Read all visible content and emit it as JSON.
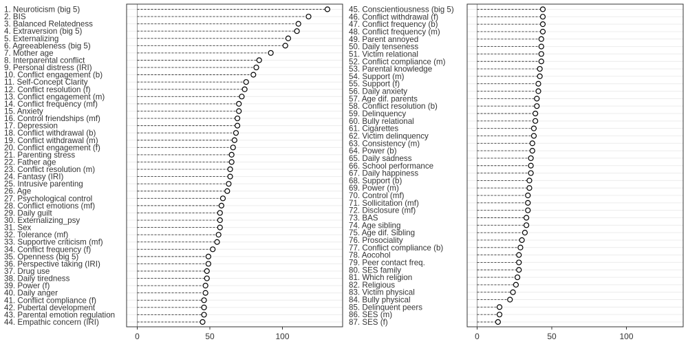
{
  "chart_data": [
    {
      "type": "dotplot",
      "xlim": [
        0,
        140
      ],
      "xticks": [
        "0",
        "50",
        "100"
      ],
      "xtick_values": [
        0,
        50,
        100
      ],
      "categories": [
        "1. Neuroticism (big 5)",
        "2. BIS",
        "3. Balanced Relatedness",
        "4. Extraversion (big 5)",
        "5. Externalizing",
        "6. Agreeableness (big 5)",
        "7. Mother age",
        "8. Interparental conflict",
        "9. Personal distress (IRI)",
        "10. Conflict engagement (b)",
        "11. Self-Concept Clarity",
        "12. Conflict resolution (f)",
        "13. Conflict engagement (m)",
        "14. Conflict frequency (mf)",
        "15. Anxiety",
        "16. Control friendships (mf)",
        "17. Depression",
        "18. Conflict withdrawal (b)",
        "19. Conflict withdrawal (m)",
        "20. Conflict engagement (f)",
        "21. Parenting stress",
        "22. Father age",
        "23. Conflict resolution (m)",
        "24. Fantasy (IRI)",
        "25. Intrusive parenting",
        "26. Age",
        "27. Psychological control",
        "28. Conflict emotions (mf)",
        "29. Daily guilt",
        "30. Externalizing_psy",
        "31. Sex",
        "32. Tolerance (mf)",
        "33. Supportive criticism (mf)",
        "34. Conflict frequency (f)",
        "35. Openness (big 5)",
        "36. Perspective taking (IRI)",
        "37. Drug use",
        "38. Daily tiredness",
        "39. Power (f)",
        "40. Daily anger",
        "41. Conflict compliance (f)",
        "42. Pubertal development",
        "43. Parental emotion regulation",
        "44. Empathic concern (IRI)"
      ],
      "values": [
        131,
        118,
        111,
        110,
        104,
        102,
        92,
        84,
        82,
        80,
        75,
        74,
        72,
        70,
        70,
        69,
        69,
        68,
        67,
        66,
        65,
        65,
        64,
        64,
        63,
        62,
        59,
        58,
        57,
        57,
        57,
        56,
        55,
        52,
        49,
        49,
        48,
        48,
        47,
        47,
        46,
        46,
        46,
        45
      ]
    },
    {
      "type": "dotplot",
      "xlim": [
        0,
        140
      ],
      "xticks": [
        "0",
        "50",
        "100"
      ],
      "xtick_values": [
        0,
        50,
        100
      ],
      "categories": [
        "45. Conscientiousness (big 5)",
        "46. Conflict withdrawal (f)",
        "47. Conflict frequency (b)",
        "48. Conflict frequency (m)",
        "49. Parent annoyed",
        "50. Daily tenseness",
        "51. Victim relational",
        "52. Conflict compliance (m)",
        "53. Parental knowledge",
        "54. Support (m)",
        "55. Support (f)",
        "56. Daily anxiety",
        "57. Age dif. parents",
        "58. Conflict resolution (b)",
        "59. Delinquency",
        "60. Bully relational",
        "61. Cigarettes",
        "62. Victim delinquency",
        "63. Consistency (m)",
        "64. Power (b)",
        "65. Daily sadness",
        "66. School performance",
        "67. Daily happiness",
        "68. Support (b)",
        "69. Power (m)",
        "70. Control (mf)",
        "71. Sollicitation (mf)",
        "72. Disclosure (mf)",
        "73. BAS",
        "74. Age sibling",
        "75. Age dif. Sibling",
        "76. Prosociality",
        "77. Conflict compliance (b)",
        "78. Aocohol",
        "79. Peer contact freq.",
        "80. SES family",
        "81. Which religion",
        "82. Religious",
        "83. Victim physical",
        "84. Bully physical",
        "85. Delinquent peers",
        "86. SES (m)",
        "87. SES (f)"
      ],
      "values": [
        44,
        44,
        44,
        44,
        43,
        43,
        43,
        43,
        42,
        42,
        41,
        41,
        40,
        40,
        39,
        39,
        38,
        38,
        37,
        37,
        36,
        36,
        36,
        35,
        35,
        34,
        34,
        34,
        33,
        33,
        32,
        30,
        29,
        28,
        28,
        28,
        27,
        26,
        24,
        22,
        15,
        15,
        14
      ]
    }
  ]
}
